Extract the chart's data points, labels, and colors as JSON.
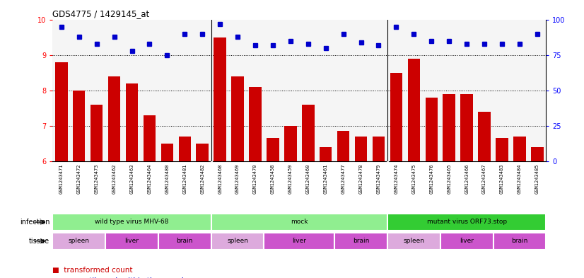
{
  "title": "GDS4775 / 1429145_at",
  "samples": [
    "GSM1243471",
    "GSM1243472",
    "GSM1243473",
    "GSM1243462",
    "GSM1243463",
    "GSM1243464",
    "GSM1243480",
    "GSM1243481",
    "GSM1243482",
    "GSM1243468",
    "GSM1243469",
    "GSM1243470",
    "GSM1243458",
    "GSM1243459",
    "GSM1243460",
    "GSM1243461",
    "GSM1243477",
    "GSM1243478",
    "GSM1243479",
    "GSM1243474",
    "GSM1243475",
    "GSM1243476",
    "GSM1243465",
    "GSM1243466",
    "GSM1243467",
    "GSM1243483",
    "GSM1243484",
    "GSM1243485"
  ],
  "transformed_count": [
    8.8,
    8.0,
    7.6,
    8.4,
    8.2,
    7.3,
    6.5,
    6.7,
    6.5,
    9.5,
    8.4,
    8.1,
    6.65,
    7.0,
    7.6,
    6.4,
    6.85,
    6.7,
    6.7,
    8.5,
    8.9,
    7.8,
    7.9,
    7.9,
    7.4,
    6.65,
    6.7,
    6.4
  ],
  "percentile_rank": [
    95,
    88,
    83,
    88,
    78,
    83,
    75,
    90,
    90,
    97,
    88,
    82,
    82,
    85,
    83,
    80,
    90,
    84,
    82,
    95,
    90,
    85,
    85,
    83,
    83,
    83,
    83,
    90
  ],
  "infection_groups": [
    {
      "label": "wild type virus MHV-68",
      "start": 0,
      "end": 9,
      "color": "#90EE90"
    },
    {
      "label": "mock",
      "start": 9,
      "end": 19,
      "color": "#90EE90"
    },
    {
      "label": "mutant virus ORF73.stop",
      "start": 19,
      "end": 28,
      "color": "#32CD32"
    }
  ],
  "tissue_groups": [
    {
      "label": "spleen",
      "start": 0,
      "end": 3
    },
    {
      "label": "liver",
      "start": 3,
      "end": 6
    },
    {
      "label": "brain",
      "start": 6,
      "end": 9
    },
    {
      "label": "spleen",
      "start": 9,
      "end": 12
    },
    {
      "label": "liver",
      "start": 12,
      "end": 16
    },
    {
      "label": "brain",
      "start": 16,
      "end": 19
    },
    {
      "label": "spleen",
      "start": 19,
      "end": 22
    },
    {
      "label": "liver",
      "start": 22,
      "end": 25
    },
    {
      "label": "brain",
      "start": 25,
      "end": 28
    }
  ],
  "ylim_left": [
    6,
    10
  ],
  "ylim_right": [
    0,
    100
  ],
  "yticks_left": [
    6,
    7,
    8,
    9,
    10
  ],
  "yticks_right": [
    0,
    25,
    50,
    75,
    100
  ],
  "bar_color": "#CC0000",
  "dot_color": "#0000CC",
  "spleen_color": "#DDAADD",
  "liver_color": "#CC55CC",
  "brain_color": "#CC55CC",
  "infection_color_light": "#90EE90",
  "infection_color_dark": "#33CC33"
}
